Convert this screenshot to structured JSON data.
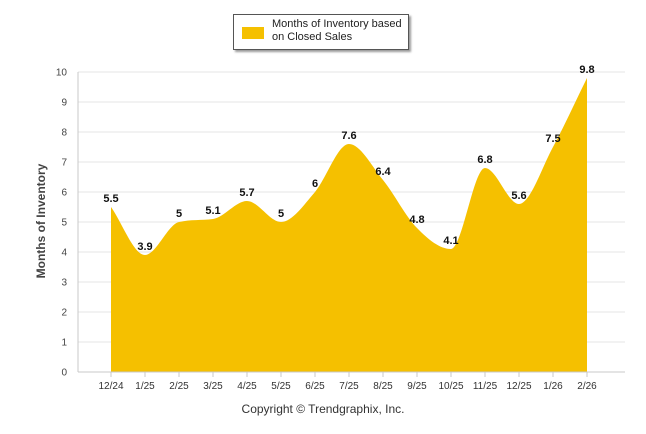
{
  "chart_data": {
    "type": "area",
    "categories": [
      "12/24",
      "1/25",
      "2/25",
      "3/25",
      "4/25",
      "5/25",
      "6/25",
      "7/25",
      "8/25",
      "9/25",
      "10/25",
      "11/25",
      "12/25",
      "1/26",
      "2/26"
    ],
    "series": [
      {
        "name": "Months of Inventory based on Closed Sales",
        "values": [
          5.5,
          3.9,
          5,
          5.1,
          5.7,
          5,
          6,
          7.6,
          6.4,
          4.8,
          4.1,
          6.8,
          5.6,
          7.5,
          9.8
        ],
        "color": "#f5c000"
      }
    ],
    "data_labels": [
      "5.5",
      "3.9",
      "5",
      "5.1",
      "5.7",
      "5",
      "6",
      "7.6",
      "6.4",
      "4.8",
      "4.1",
      "6.8",
      "5.6",
      "7.5",
      "9.8"
    ],
    "title": "",
    "xlabel": "",
    "ylabel": "Months of Inventory",
    "ylim": [
      0,
      10
    ],
    "yticks": [
      "0",
      "1",
      "2",
      "3",
      "4",
      "5",
      "6",
      "7",
      "8",
      "9",
      "10"
    ],
    "grid": true,
    "legend_position": "top-center"
  },
  "legend": {
    "label": "Months of Inventory based on Closed Sales"
  },
  "footer": {
    "copyright": "Copyright © Trendgraphix, Inc."
  },
  "colors": {
    "area": "#f5c000",
    "grid": "#e6e6e6",
    "axis": "#c8c8c8"
  }
}
